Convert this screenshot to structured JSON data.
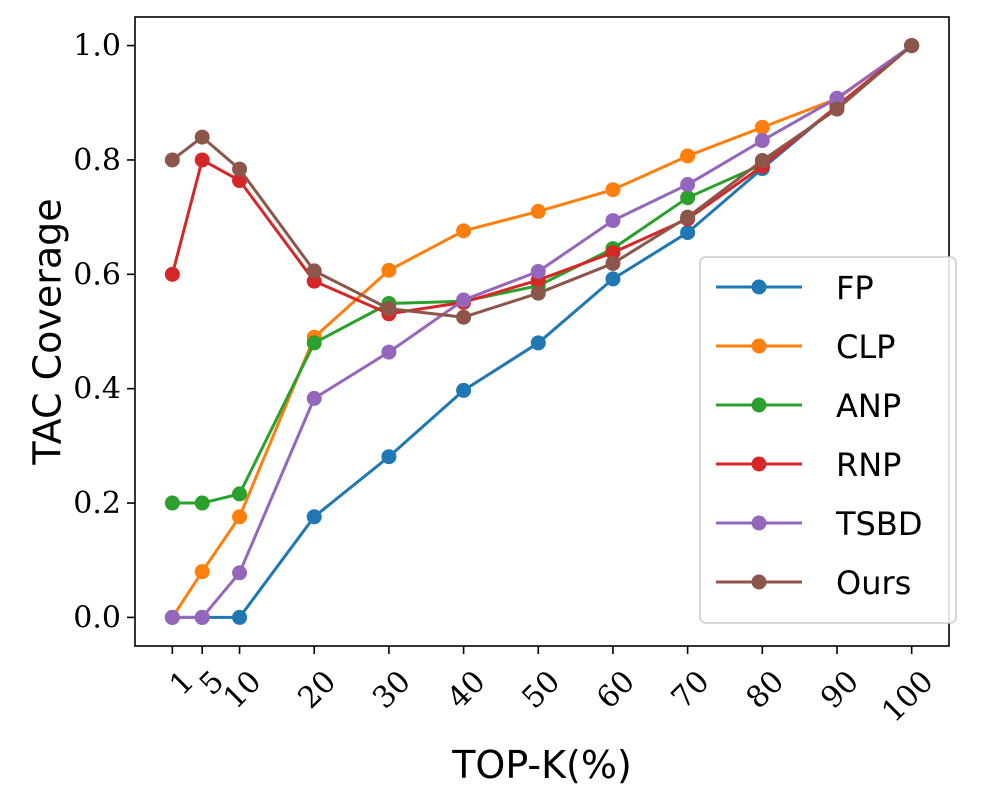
{
  "chart_data": {
    "type": "line",
    "title": "",
    "xlabel": "TOP-K(%)",
    "ylabel": "TAC Coverage",
    "x": [
      1,
      5,
      10,
      20,
      30,
      40,
      50,
      60,
      70,
      80,
      90,
      100
    ],
    "x_tick_labels": [
      "1",
      "5",
      "10",
      "20",
      "30",
      "40",
      "50",
      "60",
      "70",
      "80",
      "90",
      "100"
    ],
    "y_ticks": [
      0.0,
      0.2,
      0.4,
      0.6,
      0.8,
      1.0
    ],
    "y_tick_labels": [
      "0.0",
      "0.2",
      "0.4",
      "0.6",
      "0.8",
      "1.0"
    ],
    "xlim": [
      -4,
      105
    ],
    "ylim": [
      -0.05,
      1.05
    ],
    "grid": false,
    "legend_position": "lower-right",
    "series": [
      {
        "name": "FP",
        "color": "#1f77b4",
        "values": [
          0.0,
          0.0,
          0.0,
          0.176,
          0.281,
          0.397,
          0.48,
          0.592,
          0.673,
          0.785,
          0.894,
          1.0
        ]
      },
      {
        "name": "CLP",
        "color": "#ff7f0e",
        "values": [
          0.0,
          0.08,
          0.176,
          0.49,
          0.607,
          0.676,
          0.71,
          0.748,
          0.807,
          0.857,
          0.907,
          1.0
        ]
      },
      {
        "name": "ANP",
        "color": "#2ca02c",
        "values": [
          0.2,
          0.2,
          0.216,
          0.48,
          0.549,
          0.553,
          0.58,
          0.645,
          0.734,
          0.792,
          0.893,
          1.0
        ]
      },
      {
        "name": "RNP",
        "color": "#d62728",
        "values": [
          0.6,
          0.8,
          0.764,
          0.588,
          0.531,
          0.551,
          0.59,
          0.638,
          0.697,
          0.789,
          0.894,
          1.0
        ]
      },
      {
        "name": "TSBD",
        "color": "#9467bd",
        "values": [
          0.0,
          0.0,
          0.078,
          0.383,
          0.464,
          0.555,
          0.605,
          0.694,
          0.757,
          0.834,
          0.908,
          1.0
        ]
      },
      {
        "name": "Ours",
        "color": "#8c564b",
        "values": [
          0.8,
          0.84,
          0.784,
          0.606,
          0.54,
          0.525,
          0.567,
          0.619,
          0.7,
          0.799,
          0.889,
          1.0
        ]
      }
    ]
  }
}
